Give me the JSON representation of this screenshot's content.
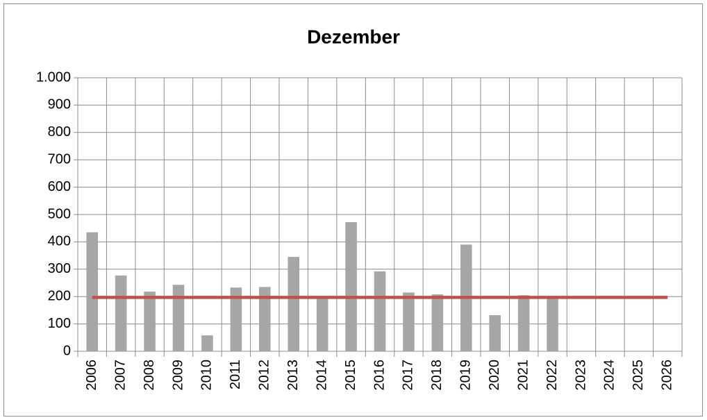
{
  "chart_data": {
    "type": "bar",
    "title": "Dezember",
    "categories": [
      "2006",
      "2007",
      "2008",
      "2009",
      "2010",
      "2011",
      "2012",
      "2013",
      "2014",
      "2015",
      "2016",
      "2017",
      "2018",
      "2019",
      "2020",
      "2021",
      "2022",
      "2023",
      "2024",
      "2025",
      "2026"
    ],
    "series": [
      {
        "type": "bar",
        "color": "#a6a6a6",
        "values": [
          435,
          277,
          218,
          243,
          58,
          233,
          235,
          345,
          197,
          472,
          292,
          215,
          208,
          390,
          132,
          205,
          197,
          null,
          null,
          null,
          null
        ]
      },
      {
        "type": "line",
        "color": "#c0504d",
        "values": [
          197,
          197,
          197,
          197,
          197,
          197,
          197,
          197,
          197,
          197,
          197,
          197,
          197,
          197,
          197,
          197,
          197,
          197,
          197,
          197,
          197
        ]
      }
    ],
    "ylim": [
      0,
      1000
    ],
    "yticks": [
      0,
      100,
      200,
      300,
      400,
      500,
      600,
      700,
      800,
      900,
      {
        "value": 1000,
        "label": "1.000"
      }
    ],
    "grid": true
  }
}
